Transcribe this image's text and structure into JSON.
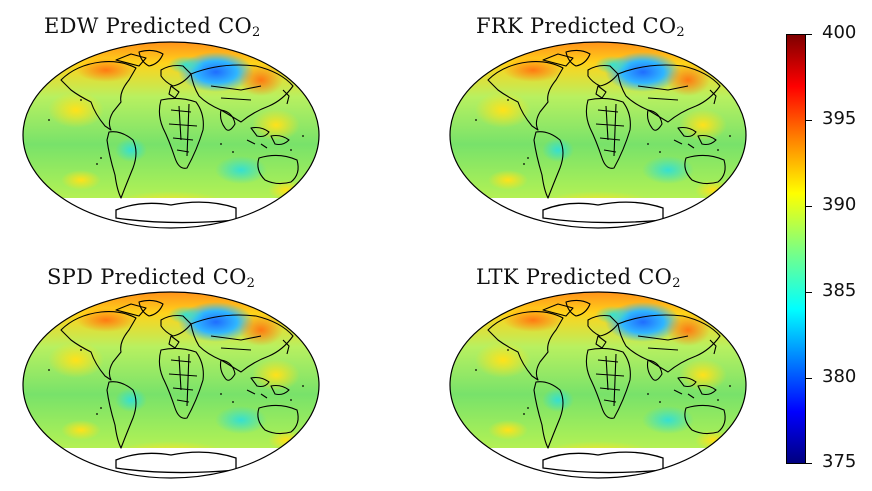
{
  "panels": [
    {
      "title_main": "EDW Predicted CO",
      "title_sub": "2"
    },
    {
      "title_main": "FRK Predicted CO",
      "title_sub": "2"
    },
    {
      "title_main": "SPD Predicted CO",
      "title_sub": "2"
    },
    {
      "title_main": "LTK Predicted CO",
      "title_sub": "2"
    }
  ],
  "colorbar": {
    "min": 375,
    "max": 400,
    "ticks": [
      "400",
      "395",
      "390",
      "385",
      "380",
      "375"
    ],
    "colormap": "jet"
  },
  "colors": {
    "ocean_base": "#7fe35a",
    "cool_anomaly": "#1a7fff",
    "warm_anomaly": "#ff9a1a",
    "coastline": "#000000"
  }
}
